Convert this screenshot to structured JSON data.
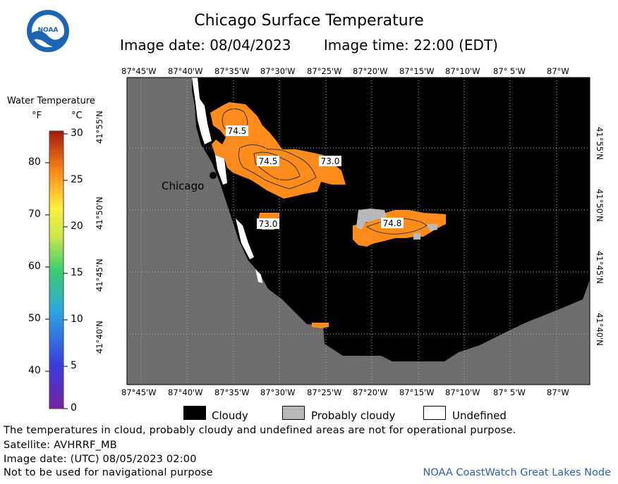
{
  "header": {
    "title": "Chicago Surface Temperature",
    "image_date": "Image date: 08/04/2023",
    "image_time": "Image time: 22:00 (EDT)",
    "logo_text": "NOAA"
  },
  "map": {
    "x_ticks": [
      "87°45'W",
      "87°40'W",
      "87°35'W",
      "87°30'W",
      "87°25'W",
      "87°20'W",
      "87°15'W",
      "87°10'W",
      "87° 5'W",
      "87°W"
    ],
    "y_ticks": [
      "41°55'N",
      "41°50'N",
      "41°45'N",
      "41°40'N"
    ],
    "city_label": "Chicago",
    "temperature_labels": [
      "74.5",
      "74.5",
      "73.0",
      "73.0",
      "74.8"
    ],
    "colors": {
      "land": "#6d6d6d",
      "cloudy": "#000000",
      "water_warm": "#ff8c1a",
      "probably_cloudy": "#b9b9b9",
      "undefined": "#ffffff"
    }
  },
  "legend": {
    "title": "Water Temperature",
    "unit_f": "°F",
    "unit_c": "°C",
    "f_ticks": [
      "80",
      "70",
      "60",
      "50",
      "40"
    ],
    "c_ticks": [
      "30",
      "25",
      "20",
      "15",
      "10",
      "5",
      "0"
    ],
    "categories": [
      "Cloudy",
      "Probably cloudy",
      "Undefined"
    ]
  },
  "footer": {
    "note1": "The temperatures in cloud, probably cloudy and undefined areas are not for operational purpose.",
    "satellite": "Satellite: AVHRRF_MB",
    "utc_date": "Image date: (UTC) 08/05/2023  02:00",
    "nav_note": "Not to be used for navigational purpose",
    "credit": "NOAA CoastWatch Great Lakes Node"
  }
}
